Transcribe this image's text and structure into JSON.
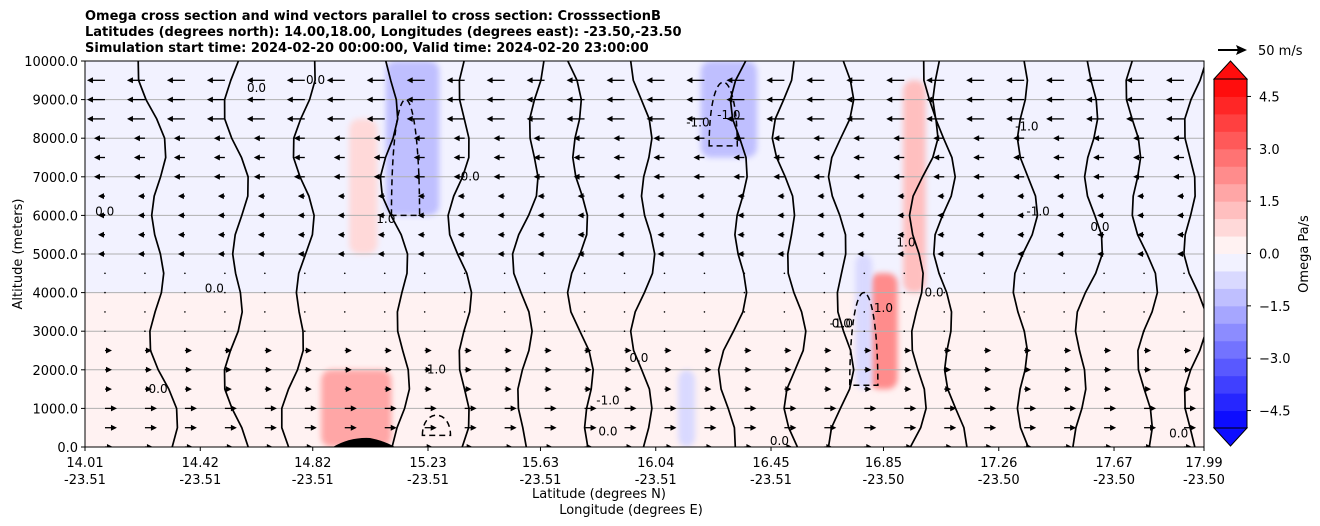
{
  "chart_data": {
    "type": "heatmap",
    "title_lines": [
      "Omega cross section and wind vectors parallel to cross section: CrosssectionB",
      "Latitudes (degrees north): 14.00,18.00, Longitudes (degrees east): -23.50,-23.50",
      "Simulation start time: 2024-02-20 00:00:00, Valid time: 2024-02-20 23:00:00"
    ],
    "ylabel": "Altitude (meters)",
    "xlabel_line1": "Latitude (degrees N)",
    "xlabel_line2": "Longitude (degrees E)",
    "ylim": [
      0,
      10000
    ],
    "y_ticks": [
      0,
      1000,
      2000,
      3000,
      4000,
      5000,
      6000,
      7000,
      8000,
      9000,
      10000
    ],
    "y_tick_labels": [
      "0.0",
      "1000.0",
      "2000.0",
      "3000.0",
      "4000.0",
      "5000.0",
      "6000.0",
      "7000.0",
      "8000.0",
      "9000.0",
      "10000.0"
    ],
    "xlim": [
      14.01,
      17.99
    ],
    "x_ticks": [
      {
        "lat": 14.01,
        "lat_label": "14.01",
        "lon_label": "-23.51"
      },
      {
        "lat": 14.42,
        "lat_label": "14.42",
        "lon_label": "-23.51"
      },
      {
        "lat": 14.82,
        "lat_label": "14.82",
        "lon_label": "-23.51"
      },
      {
        "lat": 15.23,
        "lat_label": "15.23",
        "lon_label": "-23.51"
      },
      {
        "lat": 15.63,
        "lat_label": "15.63",
        "lon_label": "-23.51"
      },
      {
        "lat": 16.04,
        "lat_label": "16.04",
        "lon_label": "-23.51"
      },
      {
        "lat": 16.45,
        "lat_label": "16.45",
        "lon_label": "-23.51"
      },
      {
        "lat": 16.85,
        "lat_label": "16.85",
        "lon_label": "-23.50"
      },
      {
        "lat": 17.26,
        "lat_label": "17.26",
        "lon_label": "-23.50"
      },
      {
        "lat": 17.67,
        "lat_label": "17.67",
        "lon_label": "-23.50"
      },
      {
        "lat": 17.99,
        "lat_label": "17.99",
        "lon_label": "-23.50"
      }
    ],
    "grid": "horizontal",
    "colorbar": {
      "label": "Omega Pa/s",
      "range": [
        -5.0,
        5.0
      ],
      "ticks": [
        4.5,
        3.0,
        1.5,
        0.0,
        -1.5,
        -3.0,
        -4.5
      ],
      "tick_labels": [
        "4.5",
        "3.0",
        "1.5",
        "0.0",
        "−1.5",
        "−3.0",
        "−4.5"
      ],
      "colormap": "bwr",
      "extend": "both",
      "levels": [
        -5.0,
        -4.5,
        -4.0,
        -3.5,
        -3.0,
        -2.5,
        -2.0,
        -1.5,
        -1.0,
        -0.5,
        0.0,
        0.5,
        1.0,
        1.5,
        2.0,
        2.5,
        3.0,
        3.5,
        4.0,
        4.5,
        5.0
      ]
    },
    "wind_vector_key": {
      "label": "50 m/s"
    },
    "omega_features": [
      {
        "lat": 14.01,
        "lat_end": 17.99,
        "z_low": 0,
        "z_high": 4000,
        "omega": 0.2
      },
      {
        "lat": 14.01,
        "lat_end": 17.99,
        "z_low": 4000,
        "z_high": 10000,
        "omega": -0.2
      },
      {
        "lat": 15.08,
        "lat_end": 15.27,
        "z_low": 6000,
        "z_high": 10000,
        "omega": -1.5
      },
      {
        "lat": 14.95,
        "lat_end": 15.05,
        "z_low": 5000,
        "z_high": 8500,
        "omega": 0.8
      },
      {
        "lat": 14.85,
        "lat_end": 15.1,
        "z_low": 0,
        "z_high": 2000,
        "omega": 1.5
      },
      {
        "lat": 16.2,
        "lat_end": 16.4,
        "z_low": 7500,
        "z_high": 10000,
        "omega": -1.5
      },
      {
        "lat": 16.8,
        "lat_end": 16.9,
        "z_low": 1500,
        "z_high": 4500,
        "omega": 2.0
      },
      {
        "lat": 16.75,
        "lat_end": 16.81,
        "z_low": 1500,
        "z_high": 5000,
        "omega": -1.0
      },
      {
        "lat": 16.92,
        "lat_end": 17.0,
        "z_low": 4000,
        "z_high": 9500,
        "omega": 1.0
      },
      {
        "lat": 16.12,
        "lat_end": 16.18,
        "z_low": 0,
        "z_high": 2000,
        "omega": -1.0
      }
    ],
    "contour_labels": [
      "0.0",
      "-1.0",
      "1.0"
    ],
    "wind_field": "vectors parallel to cross section; mostly westward (toward decreasing latitude) aloft and eastward near surface"
  }
}
